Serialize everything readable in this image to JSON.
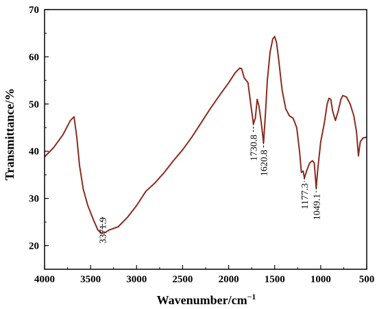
{
  "chart_data": {
    "type": "line",
    "title": "",
    "xlabel": "Wavenumber/cm",
    "xlabel_superscript": "−1",
    "ylabel": "Transmittance/%",
    "xlim": [
      4000,
      500
    ],
    "ylim": [
      15,
      70
    ],
    "x_reversed": true,
    "grid": false,
    "legend": "none",
    "x_ticks": [
      4000,
      3500,
      3000,
      2500,
      2000,
      1500,
      1000,
      500
    ],
    "y_ticks": [
      20,
      30,
      40,
      50,
      60,
      70
    ],
    "series": [
      {
        "color": "#8b2a1e",
        "points": [
          [
            4000,
            38.8
          ],
          [
            3900,
            40.8
          ],
          [
            3800,
            43.5
          ],
          [
            3720,
            46.5
          ],
          [
            3680,
            47.3
          ],
          [
            3650,
            43.0
          ],
          [
            3620,
            37.0
          ],
          [
            3580,
            32.0
          ],
          [
            3530,
            28.5
          ],
          [
            3470,
            25.5
          ],
          [
            3420,
            23.3
          ],
          [
            3380,
            22.6
          ],
          [
            3340,
            22.8
          ],
          [
            3300,
            23.3
          ],
          [
            3200,
            24.0
          ],
          [
            3100,
            26.0
          ],
          [
            3000,
            28.5
          ],
          [
            2900,
            31.5
          ],
          [
            2800,
            33.3
          ],
          [
            2700,
            35.5
          ],
          [
            2600,
            38.0
          ],
          [
            2500,
            40.3
          ],
          [
            2400,
            43.0
          ],
          [
            2300,
            46.0
          ],
          [
            2200,
            49.0
          ],
          [
            2100,
            51.8
          ],
          [
            2000,
            54.5
          ],
          [
            1930,
            56.6
          ],
          [
            1880,
            57.6
          ],
          [
            1860,
            57.5
          ],
          [
            1830,
            55.5
          ],
          [
            1790,
            54.5
          ],
          [
            1760,
            50.0
          ],
          [
            1731,
            45.8
          ],
          [
            1710,
            47.0
          ],
          [
            1690,
            51.0
          ],
          [
            1670,
            49.5
          ],
          [
            1645,
            46.0
          ],
          [
            1621,
            41.8
          ],
          [
            1600,
            48.0
          ],
          [
            1580,
            55.0
          ],
          [
            1550,
            61.0
          ],
          [
            1520,
            63.8
          ],
          [
            1500,
            64.3
          ],
          [
            1480,
            63.0
          ],
          [
            1460,
            60.0
          ],
          [
            1420,
            53.0
          ],
          [
            1380,
            49.0
          ],
          [
            1340,
            47.5
          ],
          [
            1300,
            47.0
          ],
          [
            1260,
            45.0
          ],
          [
            1230,
            40.0
          ],
          [
            1210,
            35.5
          ],
          [
            1190,
            35.8
          ],
          [
            1177,
            34.3
          ],
          [
            1150,
            36.0
          ],
          [
            1120,
            37.5
          ],
          [
            1090,
            38.0
          ],
          [
            1070,
            37.5
          ],
          [
            1049,
            32.2
          ],
          [
            1030,
            36.5
          ],
          [
            1000,
            42.0
          ],
          [
            960,
            46.0
          ],
          [
            930,
            50.0
          ],
          [
            910,
            51.2
          ],
          [
            890,
            51.0
          ],
          [
            870,
            48.5
          ],
          [
            840,
            46.5
          ],
          [
            810,
            48.5
          ],
          [
            780,
            51.0
          ],
          [
            760,
            51.8
          ],
          [
            720,
            51.5
          ],
          [
            680,
            50.0
          ],
          [
            640,
            47.5
          ],
          [
            610,
            44.0
          ],
          [
            590,
            39.0
          ],
          [
            570,
            42.0
          ],
          [
            540,
            42.8
          ],
          [
            500,
            43.0
          ]
        ]
      }
    ],
    "annotations": [
      {
        "text": "3371.9",
        "x": 3371.9,
        "y": 22.6
      },
      {
        "text": "1730.8",
        "x": 1730.8,
        "y": 45.8
      },
      {
        "text": "1620.8",
        "x": 1620.8,
        "y": 41.8
      },
      {
        "text": "1177.3",
        "x": 1177.3,
        "y": 34.3
      },
      {
        "text": "1049.1",
        "x": 1049.1,
        "y": 32.2
      }
    ]
  }
}
